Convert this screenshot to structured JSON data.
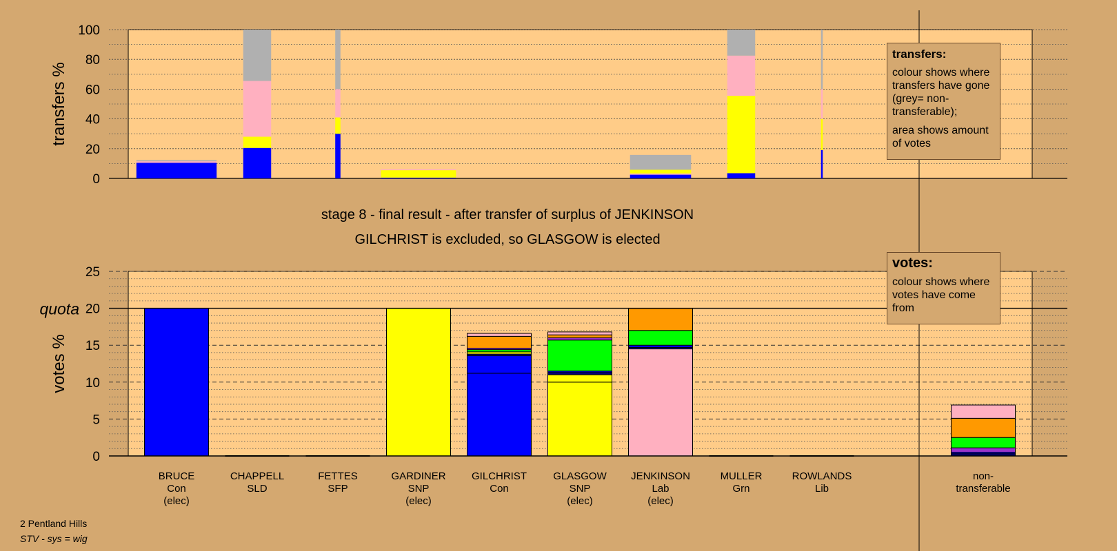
{
  "chart_data": [
    {
      "type": "bar",
      "panel": "transfers",
      "ylabel": "transfers %",
      "ylim": [
        0,
        100
      ],
      "yticks": [
        "0",
        "20",
        "40",
        "60",
        "80",
        "100"
      ],
      "categories": [
        "BRUCE",
        "CHAPPELL",
        "FETTES",
        "GARDINER",
        "GILCHRIST",
        "GLASGOW",
        "JENKINSON",
        "MULLER",
        "ROWLANDS"
      ],
      "bars": [
        {
          "candidate": "BRUCE",
          "width_share": 0.46,
          "segments": [
            {
              "party": "Con",
              "value": 10.5
            },
            {
              "party": "Lab",
              "value": 1
            },
            {
              "party": "non-transferable",
              "value": 0.8
            }
          ]
        },
        {
          "candidate": "CHAPPELL",
          "width_share": 0.16,
          "segments": [
            {
              "party": "Con",
              "value": 20.5
            },
            {
              "party": "SNP",
              "value": 7.5
            },
            {
              "party": "Lab",
              "value": 37.5
            },
            {
              "party": "non-transferable",
              "value": 34.5
            }
          ]
        },
        {
          "candidate": "FETTES",
          "width_share": 0.03,
          "segments": [
            {
              "party": "Con",
              "value": 30
            },
            {
              "party": "SNP",
              "value": 11
            },
            {
              "party": "Lab",
              "value": 19
            },
            {
              "party": "non-transferable",
              "value": 40
            }
          ]
        },
        {
          "candidate": "GARDINER",
          "width_share": 0.43,
          "segments": [
            {
              "party": "Con",
              "value": 0.5
            },
            {
              "party": "SNP",
              "value": 5
            },
            {
              "party": "Lab",
              "value": 0.5
            }
          ]
        },
        {
          "candidate": "JENKINSON",
          "width_share": 0.35,
          "segments": [
            {
              "party": "Con",
              "value": 2.5
            },
            {
              "party": "Lab",
              "value": 0.8
            },
            {
              "party": "SNP",
              "value": 2.5
            },
            {
              "party": "non-transferable",
              "value": 10
            }
          ]
        },
        {
          "candidate": "MULLER",
          "width_share": 0.16,
          "segments": [
            {
              "party": "Con",
              "value": 3.5
            },
            {
              "party": "SNP",
              "value": 52
            },
            {
              "party": "Lab",
              "value": 27
            },
            {
              "party": "non-transferable",
              "value": 17.5
            }
          ]
        },
        {
          "candidate": "ROWLANDS",
          "width_share": 0.01,
          "segments": [
            {
              "party": "Con",
              "value": 19
            },
            {
              "party": "SNP",
              "value": 21
            },
            {
              "party": "Lab",
              "value": 20
            },
            {
              "party": "non-transferable",
              "value": 40
            }
          ]
        }
      ]
    },
    {
      "type": "bar",
      "panel": "votes",
      "ylabel": "votes %",
      "ylim": [
        0,
        25
      ],
      "yticks": [
        "0",
        "5",
        "10",
        "15",
        "20",
        "25"
      ],
      "quota": 20,
      "quota_label": "quota",
      "candidates": [
        {
          "name": "BRUCE",
          "party": "Con",
          "status": "(elec)",
          "segments": [
            {
              "party": "Con",
              "value": 20
            }
          ]
        },
        {
          "name": "CHAPPELL",
          "party": "SLD",
          "status": "",
          "segments": []
        },
        {
          "name": "FETTES",
          "party": "SFP",
          "status": "",
          "segments": []
        },
        {
          "name": "GARDINER",
          "party": "SNP",
          "status": "(elec)",
          "segments": [
            {
              "party": "SNP",
              "value": 20
            }
          ]
        },
        {
          "name": "GILCHRIST",
          "party": "Con",
          "status": "",
          "segments": [
            {
              "party": "Con",
              "value": 11.2
            },
            {
              "party": "Con",
              "value": 2.4
            },
            {
              "party": "Lib",
              "value": 0.2
            },
            {
              "party": "SNP",
              "value": 0.3
            },
            {
              "party": "Grn",
              "value": 0.3
            },
            {
              "party": "SFP",
              "value": 0.2
            },
            {
              "party": "SLD",
              "value": 1.6
            },
            {
              "party": "Lab",
              "value": 0.4
            }
          ]
        },
        {
          "name": "GLASGOW",
          "party": "SNP",
          "status": "(elec)",
          "segments": [
            {
              "party": "SNP",
              "value": 10
            },
            {
              "party": "SNP",
              "value": 1
            },
            {
              "party": "Lib",
              "value": 0.3
            },
            {
              "party": "Con",
              "value": 0.2
            },
            {
              "party": "Grn",
              "value": 4.2
            },
            {
              "party": "SFP",
              "value": 0.3
            },
            {
              "party": "SLD",
              "value": 0.4
            },
            {
              "party": "Lab",
              "value": 0.4
            }
          ]
        },
        {
          "name": "JENKINSON",
          "party": "Lab",
          "status": "(elec)",
          "segments": [
            {
              "party": "Lab",
              "value": 14.5
            },
            {
              "party": "Lib",
              "value": 0.2
            },
            {
              "party": "Con",
              "value": 0.3
            },
            {
              "party": "Grn",
              "value": 2.0
            },
            {
              "party": "SLD",
              "value": 3.0
            }
          ]
        },
        {
          "name": "MULLER",
          "party": "Grn",
          "status": "",
          "segments": []
        },
        {
          "name": "ROWLANDS",
          "party": "Lib",
          "status": "",
          "segments": []
        },
        {
          "name": "non-",
          "party": "transferable",
          "status": "",
          "nontransferable": true,
          "segments": [
            {
              "party": "Lib",
              "value": 0.3
            },
            {
              "party": "Con",
              "value": 0.2
            },
            {
              "party": "SFP",
              "value": 0.6
            },
            {
              "party": "Grn",
              "value": 1.4
            },
            {
              "party": "SLD",
              "value": 2.6
            },
            {
              "party": "Lab",
              "value": 1.8
            }
          ]
        }
      ]
    }
  ],
  "party_colors": {
    "Con": "#0000ff",
    "SNP": "#ffff00",
    "Lab": "#ffb0c0",
    "Grn": "#00ff00",
    "SLD": "#ff9900",
    "SFP": "#9933cc",
    "Lib": "#000080",
    "non-transferable": "#b0b0b0"
  },
  "colors": {
    "background": "#d4a870",
    "plot_background": "#ffcc88"
  },
  "titles": {
    "stage": "stage 8 - final result - after transfer of surplus of JENKINSON",
    "result": "GILCHRIST is excluded, so GLASGOW is elected"
  },
  "legend_transfers": {
    "heading": "transfers:",
    "text1": "colour shows where transfers have gone (grey= non-transferable);",
    "text2": "area shows amount of votes"
  },
  "legend_votes": {
    "heading": "votes:",
    "text1": "colour shows where votes have come from"
  },
  "footer": {
    "line1": "2 Pentland Hills",
    "line2": "STV - sys = wig"
  }
}
